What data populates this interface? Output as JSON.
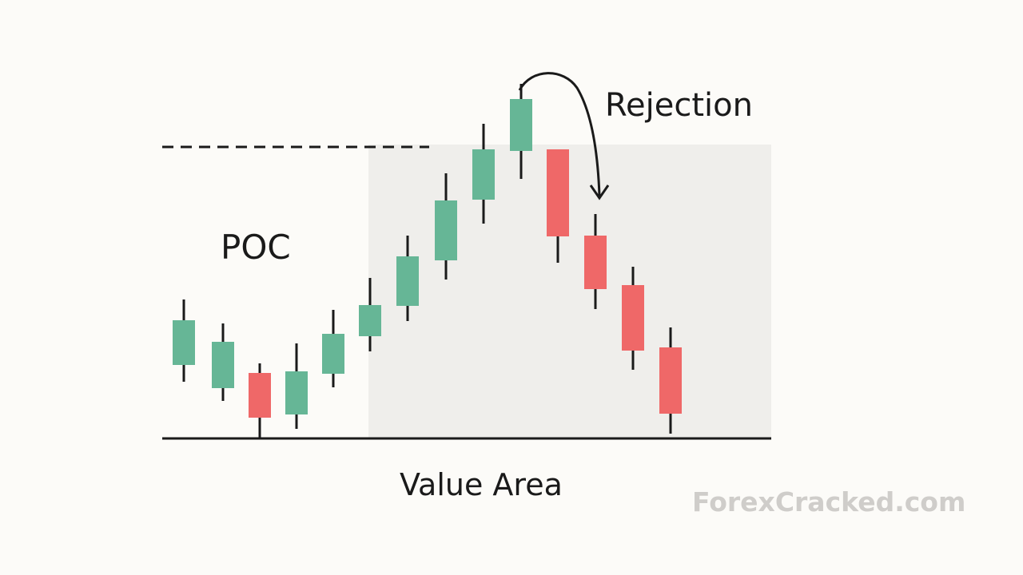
{
  "labels": {
    "rejection": "Rejection",
    "poc": "POC",
    "value_area": "Value Area"
  },
  "watermark": "ForexCracked.com"
}
